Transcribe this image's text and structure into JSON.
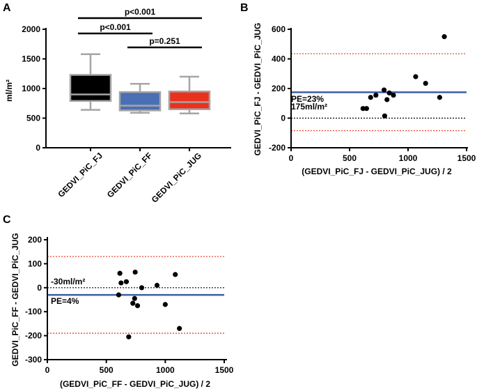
{
  "panels": {
    "A": "A",
    "B": "B",
    "C": "C"
  },
  "chart_data": [
    {
      "type": "box",
      "panel": "A",
      "ylabel": "ml/m²",
      "ylim": [
        0,
        2000
      ],
      "yticks": [
        "0",
        "500",
        "1000",
        "1500",
        "2000"
      ],
      "categories": [
        "GEDVI_PiC_FJ",
        "GEDVI_PiC_FF",
        "GEDVI_PiC_JUG"
      ],
      "colors": [
        "#000000",
        "#4a6fb5",
        "#e8321e"
      ],
      "boxes": [
        {
          "min": 640,
          "q1": 790,
          "median": 900,
          "q3": 1230,
          "max": 1580
        },
        {
          "min": 590,
          "q1": 630,
          "median": 710,
          "q3": 940,
          "max": 1080
        },
        {
          "min": 580,
          "q1": 650,
          "median": 770,
          "q3": 950,
          "max": 1200
        }
      ],
      "comparisons": [
        {
          "from": 0,
          "to": 2,
          "label": "p<0.001"
        },
        {
          "from": 0,
          "to": 1,
          "label": "p<0.001"
        },
        {
          "from": 1,
          "to": 2,
          "label": "p=0.251"
        }
      ]
    },
    {
      "type": "scatter",
      "panel": "B",
      "xlabel": "(GEDVI_PiC_FJ - GEDVI_PiC_JUG) / 2",
      "ylabel": "GEDVI_PiC_FJ - GEDVI_PiC_JUG",
      "xlim": [
        0,
        1500
      ],
      "ylim": [
        -200,
        600
      ],
      "xticks": [
        "0",
        "500",
        "1000",
        "1500"
      ],
      "yticks": [
        "-200",
        "0",
        "200",
        "400",
        "600"
      ],
      "mean_line": 175,
      "upper_loa": 435,
      "lower_loa": -85,
      "mean_label": "175ml/m²",
      "pe_label": "PE=23%",
      "points": [
        [
          615,
          65
        ],
        [
          645,
          65
        ],
        [
          680,
          140
        ],
        [
          725,
          155
        ],
        [
          795,
          190
        ],
        [
          800,
          15
        ],
        [
          820,
          125
        ],
        [
          840,
          170
        ],
        [
          875,
          155
        ],
        [
          1065,
          280
        ],
        [
          1150,
          235
        ],
        [
          1270,
          140
        ],
        [
          1310,
          550
        ]
      ]
    },
    {
      "type": "scatter",
      "panel": "C",
      "xlabel": "(GEDVI_PiC_FF - GEDVI_PiC_JUG) / 2",
      "ylabel": "GEDVI_PiC_FF - GEDVI_PiC_JUG",
      "xlim": [
        0,
        1500
      ],
      "ylim": [
        -300,
        200
      ],
      "xticks": [
        "0",
        "500",
        "1000",
        "1500"
      ],
      "yticks": [
        "-300",
        "-200",
        "-100",
        "0",
        "100",
        "200"
      ],
      "mean_line": -30,
      "upper_loa": 130,
      "lower_loa": -190,
      "mean_label": "-30ml/m²",
      "pe_label": "PE=4%",
      "points": [
        [
          605,
          -30
        ],
        [
          615,
          60
        ],
        [
          625,
          20
        ],
        [
          670,
          25
        ],
        [
          690,
          -205
        ],
        [
          725,
          -65
        ],
        [
          740,
          -45
        ],
        [
          745,
          65
        ],
        [
          765,
          -75
        ],
        [
          800,
          0
        ],
        [
          930,
          10
        ],
        [
          1000,
          -70
        ],
        [
          1085,
          55
        ],
        [
          1120,
          -170
        ]
      ]
    }
  ]
}
